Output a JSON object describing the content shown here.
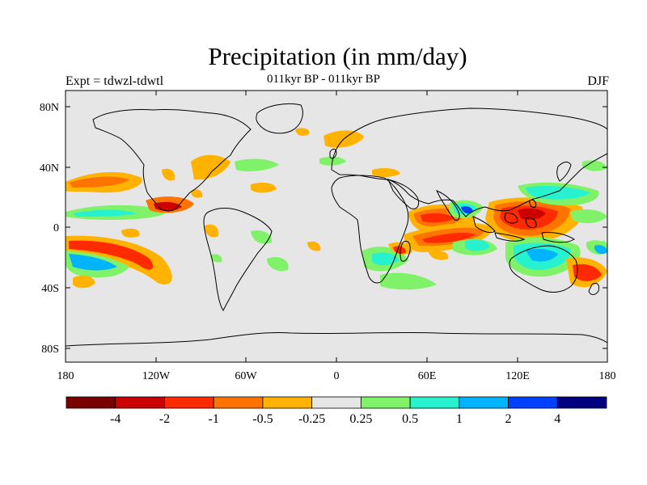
{
  "title": "Precipitation (in mm/day)",
  "left_label": "Expt = tdwzl-tdwtl",
  "center_label": "011kyr BP - 011kyr BP",
  "right_label": "DJF",
  "lat_ticks": [
    "80N",
    "40N",
    "0",
    "40S",
    "80S"
  ],
  "lon_ticks": [
    "180",
    "120W",
    "60W",
    "0",
    "60E",
    "120E",
    "180"
  ],
  "colorbar": {
    "colors": [
      "#7a0000",
      "#cc0000",
      "#ff2a00",
      "#ff7300",
      "#ffb300",
      "#e6e6e6",
      "#80f26a",
      "#26f2d0",
      "#00b4ff",
      "#0040ff",
      "#000080"
    ],
    "labels": [
      "-4",
      "-2",
      "-1",
      "-0.5",
      "-0.25",
      "0.25",
      "0.5",
      "1",
      "2",
      "4"
    ]
  },
  "map_colors": {
    "background": "#e6e6e6",
    "coast": "#000000"
  }
}
